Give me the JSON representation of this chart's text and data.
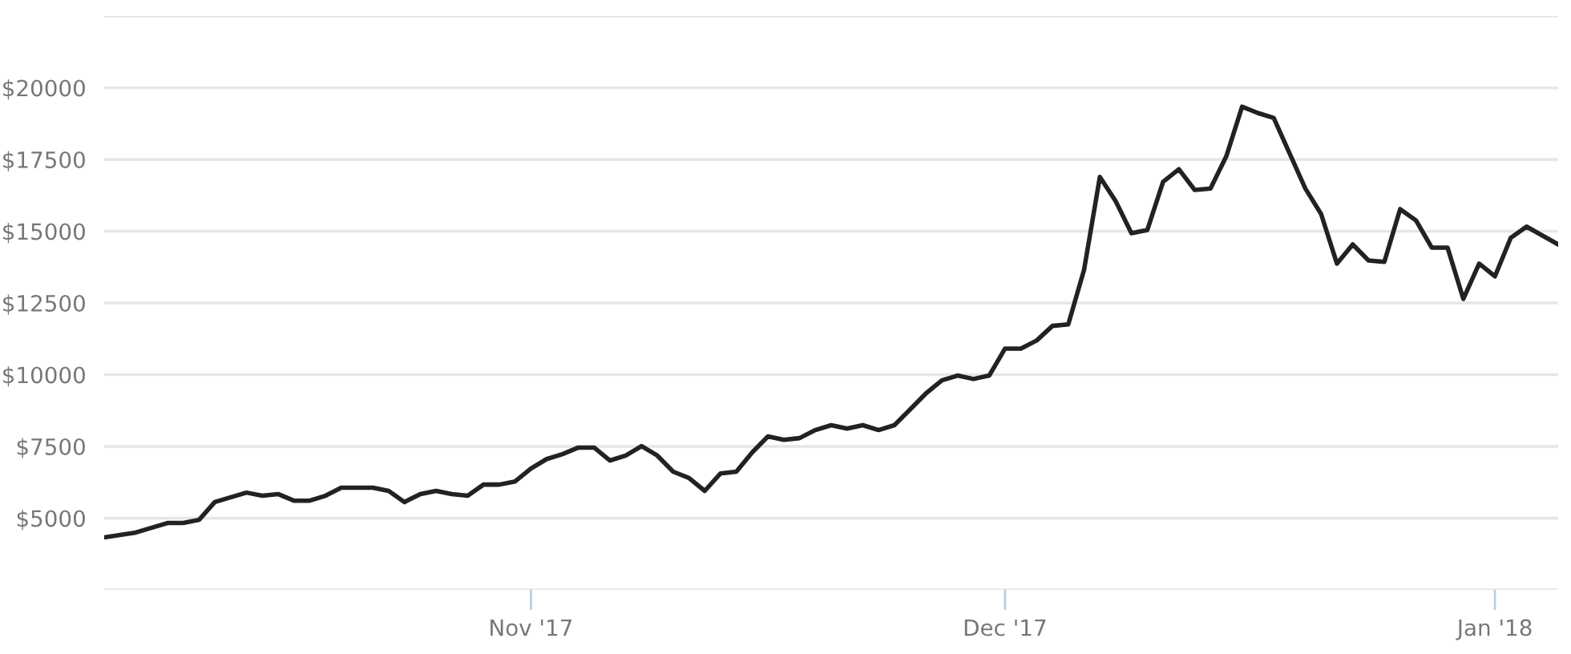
{
  "chart_data": {
    "type": "line",
    "x": [
      "2017-10-05",
      "2017-10-07",
      "2017-10-09",
      "2017-10-10",
      "2017-10-11",
      "2017-10-12",
      "2017-10-14",
      "2017-10-15",
      "2017-10-16",
      "2017-10-17",
      "2017-10-18",
      "2017-10-19",
      "2017-10-20",
      "2017-10-22",
      "2017-10-23",
      "2017-10-24",
      "2017-10-25",
      "2017-10-26",
      "2017-10-27",
      "2017-10-28",
      "2017-10-29",
      "2017-10-30",
      "2017-10-31",
      "2017-11-01",
      "2017-11-02",
      "2017-11-03",
      "2017-11-04",
      "2017-11-05",
      "2017-11-06",
      "2017-11-07",
      "2017-11-08",
      "2017-11-09",
      "2017-11-10",
      "2017-11-11",
      "2017-11-12",
      "2017-11-13",
      "2017-11-14",
      "2017-11-15",
      "2017-11-16",
      "2017-11-17",
      "2017-11-18",
      "2017-11-19",
      "2017-11-20",
      "2017-11-21",
      "2017-11-22",
      "2017-11-23",
      "2017-11-24",
      "2017-11-25",
      "2017-11-26",
      "2017-11-27",
      "2017-11-28",
      "2017-11-29",
      "2017-11-30",
      "2017-12-01",
      "2017-12-02",
      "2017-12-03",
      "2017-12-04",
      "2017-12-05",
      "2017-12-06",
      "2017-12-07",
      "2017-12-08",
      "2017-12-09",
      "2017-12-10",
      "2017-12-11",
      "2017-12-12",
      "2017-12-13",
      "2017-12-14",
      "2017-12-15",
      "2017-12-16",
      "2017-12-17",
      "2017-12-18",
      "2017-12-19",
      "2017-12-20",
      "2017-12-21",
      "2017-12-22",
      "2017-12-23",
      "2017-12-24",
      "2017-12-25",
      "2017-12-26",
      "2017-12-27",
      "2017-12-28",
      "2017-12-29",
      "2017-12-30",
      "2017-12-31",
      "2018-01-01",
      "2018-01-02",
      "2018-01-03",
      "2018-01-05"
    ],
    "series": [
      {
        "color": "#222222",
        "values": [
          4330,
          4500,
          4830,
          4830,
          4940,
          5560,
          5890,
          5780,
          5840,
          5610,
          5610,
          5780,
          6060,
          6060,
          5950,
          5560,
          5840,
          5950,
          5840,
          5780,
          6170,
          6170,
          6280,
          6730,
          7060,
          7230,
          7460,
          7460,
          7010,
          7180,
          7510,
          7180,
          6620,
          6400,
          5950,
          6560,
          6620,
          7290,
          7850,
          7730,
          7790,
          8070,
          8240,
          8120,
          8240,
          8070,
          8240,
          8790,
          9350,
          9800,
          9970,
          9850,
          9970,
          10910,
          10910,
          11190,
          11700,
          11750,
          13650,
          16890,
          16050,
          14930,
          15040,
          16720,
          17160,
          16440,
          16490,
          17610,
          19340,
          19120,
          18950,
          17720,
          16490,
          15600,
          13870,
          14540,
          13980,
          13930,
          15770,
          15380,
          14430,
          14430,
          12640,
          13870,
          13430,
          14770,
          15160,
          14540
        ]
      }
    ],
    "xlim": [
      "2017-10-05",
      "2018-01-05"
    ],
    "xticks": [
      {
        "value": "2017-11-01",
        "label": "Nov '17"
      },
      {
        "value": "2017-12-01",
        "label": "Dec '17"
      },
      {
        "value": "2018-01-01",
        "label": "Jan '18"
      }
    ],
    "ylim": [
      2500,
      22500
    ],
    "yticks": [
      {
        "value": 2500,
        "label": null
      },
      {
        "value": 5000,
        "label": "$5000"
      },
      {
        "value": 7500,
        "label": "$7500"
      },
      {
        "value": 10000,
        "label": "$10000"
      },
      {
        "value": 12500,
        "label": "$12500"
      },
      {
        "value": 15000,
        "label": "$15000"
      },
      {
        "value": 17500,
        "label": "$17500"
      },
      {
        "value": 20000,
        "label": "$20000"
      },
      {
        "value": 22500,
        "label": null
      }
    ],
    "grid": "y",
    "marker": "none",
    "line_style": "solid"
  }
}
